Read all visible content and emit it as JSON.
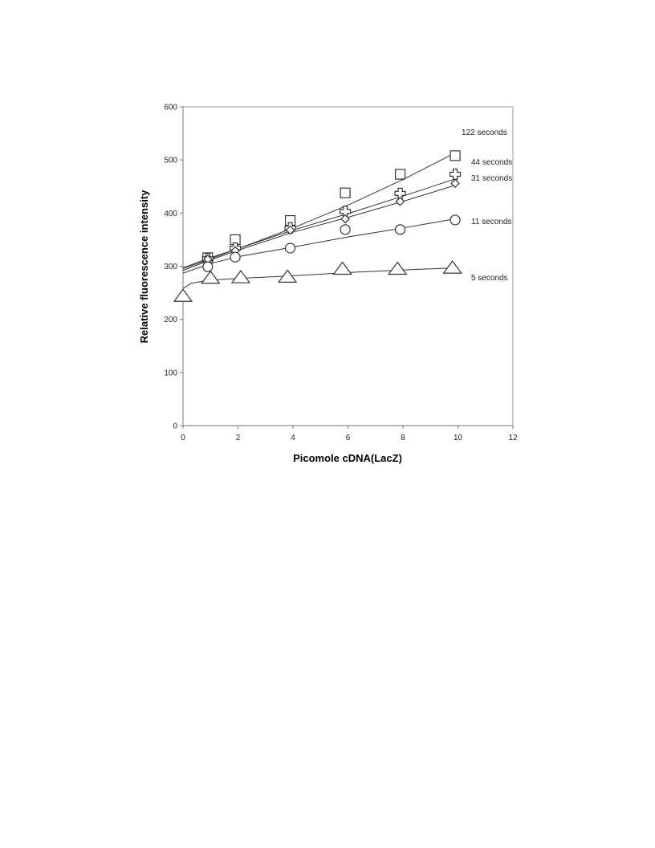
{
  "chart_data": {
    "type": "scatter",
    "title": "",
    "xlabel": "Picomole cDNA(LacZ)",
    "ylabel": "Relative fluorescence intensity",
    "xlim": [
      0,
      12
    ],
    "ylim": [
      0,
      600
    ],
    "xticks": [
      "0",
      "2",
      "4",
      "6",
      "8",
      "10",
      "12"
    ],
    "yticks": [
      "0",
      "100",
      "200",
      "300",
      "400",
      "500",
      "600"
    ],
    "grid": false,
    "legend": "none",
    "series": [
      {
        "name": "122 seconds",
        "marker": "square",
        "x": [
          0,
          0.9,
          1.9,
          3.9,
          5.9,
          7.9,
          9.9
        ],
        "y": [
          298,
          316,
          350,
          386,
          438,
          473,
          508
        ],
        "fit": [
          [
            0,
            297
          ],
          [
            1,
            316
          ],
          [
            2,
            333
          ],
          [
            4,
            372
          ],
          [
            6,
            415
          ],
          [
            8,
            463
          ],
          [
            10,
            516
          ]
        ]
      },
      {
        "name": "44 seconds",
        "marker": "cross",
        "x": [
          0,
          0.9,
          1.9,
          3.9,
          5.9,
          7.9,
          9.9
        ],
        "y": [
          295,
          314,
          334,
          372,
          403,
          437,
          473
        ],
        "fit": [
          [
            0,
            295
          ],
          [
            1,
            314
          ],
          [
            2,
            333
          ],
          [
            4,
            368
          ],
          [
            6,
            399
          ],
          [
            8,
            432
          ],
          [
            10,
            466
          ]
        ]
      },
      {
        "name": "31 seconds",
        "marker": "diamond",
        "x": [
          0,
          0.9,
          1.9,
          3.9,
          5.9,
          7.9,
          9.9
        ],
        "y": [
          290,
          313,
          329,
          368,
          389,
          422,
          456
        ],
        "fit": [
          [
            0,
            292
          ],
          [
            1,
            312
          ],
          [
            2,
            330
          ],
          [
            4,
            364
          ],
          [
            6,
            392
          ],
          [
            8,
            422
          ],
          [
            10,
            454
          ]
        ]
      },
      {
        "name": "11 seconds",
        "marker": "circle",
        "x": [
          0,
          0.9,
          1.9,
          3.9,
          5.9,
          7.9,
          9.9
        ],
        "y": [
          285,
          299,
          317,
          334,
          369,
          369,
          387
        ],
        "fit": [
          [
            0,
            287
          ],
          [
            1,
            305
          ],
          [
            2,
            318
          ],
          [
            4,
            336
          ],
          [
            6,
            355
          ],
          [
            8,
            372
          ],
          [
            10,
            390
          ]
        ]
      },
      {
        "name": "5 seconds",
        "marker": "triangle",
        "x": [
          0,
          1.0,
          2.1,
          3.8,
          5.8,
          7.8,
          9.8
        ],
        "y": [
          243,
          277,
          278,
          279,
          294,
          294,
          296
        ],
        "fit": [
          [
            0,
            258
          ],
          [
            0.3,
            268
          ],
          [
            1,
            274
          ],
          [
            2,
            277
          ],
          [
            4,
            282
          ],
          [
            6,
            288
          ],
          [
            8,
            293
          ],
          [
            10,
            297
          ]
        ]
      }
    ]
  }
}
